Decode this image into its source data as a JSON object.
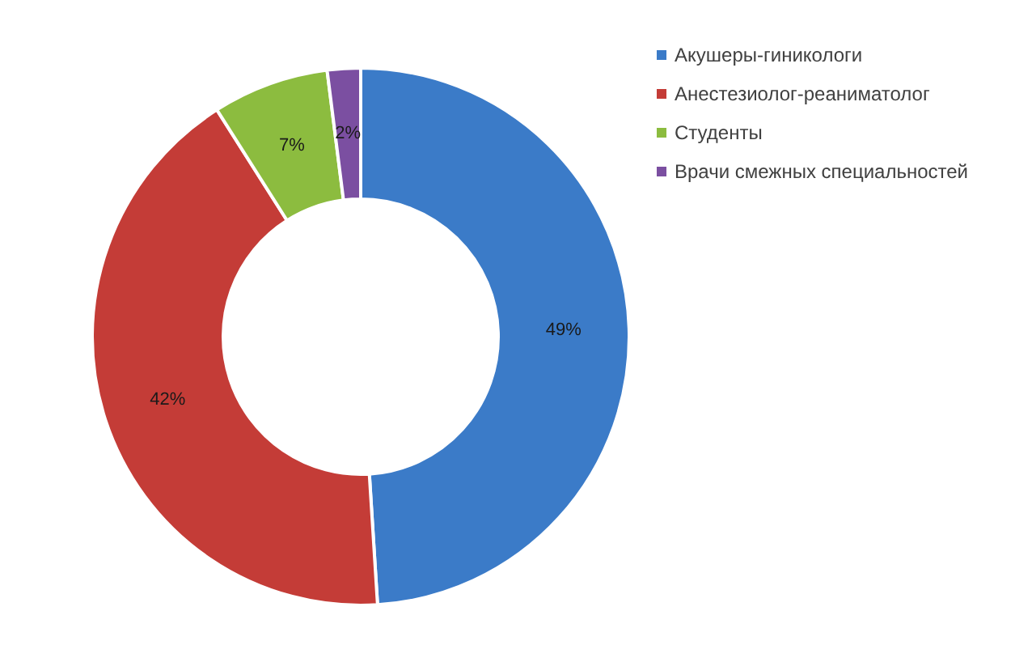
{
  "chart_data": {
    "type": "donut",
    "categories": [
      "Акушеры-гиникологи",
      "Анестезиолог-реаниматолог",
      "Студенты",
      "Врачи смежных специальностей"
    ],
    "values": [
      49,
      42,
      7,
      2
    ],
    "colors": [
      "#3b7bc8",
      "#c43c37",
      "#8cbc3f",
      "#7b4fa1"
    ],
    "value_labels": [
      "49%",
      "42%",
      "7%",
      "2%"
    ],
    "legend": "top right"
  }
}
